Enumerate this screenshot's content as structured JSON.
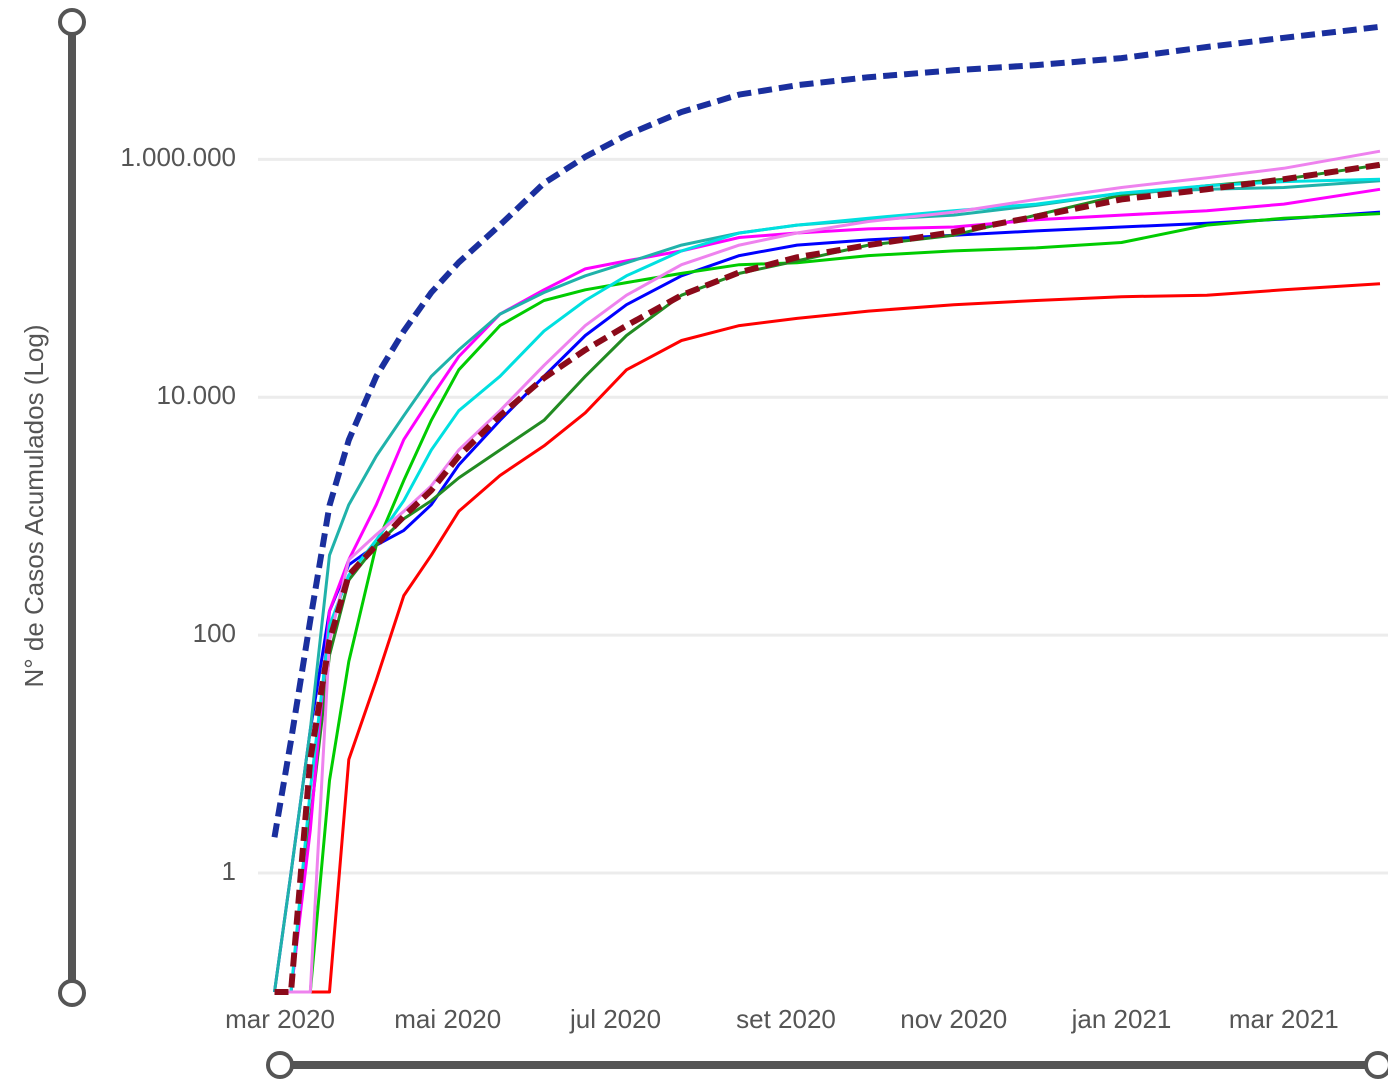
{
  "chart_data": {
    "type": "line",
    "y_label": "N° de Casos Acumulados (Log)",
    "log_y": true,
    "grid": true,
    "xlim": [
      "2020-02-28",
      "2021-04-05"
    ],
    "ylim": [
      0.1,
      18000000
    ],
    "xticks": [
      {
        "value": "2020-03-01",
        "label": "mar 2020"
      },
      {
        "value": "2020-05-01",
        "label": "mai 2020"
      },
      {
        "value": "2020-07-01",
        "label": "jul 2020"
      },
      {
        "value": "2020-09-01",
        "label": "set 2020"
      },
      {
        "value": "2020-11-01",
        "label": "nov 2020"
      },
      {
        "value": "2021-01-01",
        "label": "jan 2021"
      },
      {
        "value": "2021-03-01",
        "label": "mar 2021"
      }
    ],
    "yticks": [
      1,
      100,
      {
        "value": 10000,
        "label": "10.000"
      },
      {
        "value": 1000000,
        "label": "1.000.000"
      }
    ],
    "x": [
      "2020-02-28",
      "2020-03-05",
      "2020-03-12",
      "2020-03-19",
      "2020-03-26",
      "2020-04-05",
      "2020-04-15",
      "2020-04-25",
      "2020-05-05",
      "2020-05-20",
      "2020-06-05",
      "2020-06-20",
      "2020-07-05",
      "2020-07-25",
      "2020-08-15",
      "2020-09-05",
      "2020-10-01",
      "2020-11-01",
      "2020-12-01",
      "2021-01-01",
      "2021-02-01",
      "2021-03-01",
      "2021-04-05"
    ],
    "series": [
      {
        "color": "#ff0000",
        "values": [
          0.1,
          0.1,
          0.1,
          0.1,
          9,
          42,
          215,
          470,
          1100,
          2200,
          3900,
          7400,
          17000,
          30000,
          40000,
          46000,
          53000,
          60000,
          65000,
          70000,
          72000,
          80000,
          90000
        ]
      },
      {
        "color": "#0000ff",
        "values": [
          0.1,
          1,
          16,
          160,
          390,
          570,
          760,
          1250,
          2700,
          6400,
          15000,
          33000,
          60000,
          105000,
          155000,
          190000,
          210000,
          230000,
          250000,
          270000,
          290000,
          315000,
          360000
        ]
      },
      {
        "color": "#00cc00",
        "values": [
          0.1,
          0.1,
          0.1,
          6,
          60,
          570,
          2000,
          6400,
          17000,
          40000,
          65000,
          80000,
          92000,
          110000,
          130000,
          135000,
          155000,
          170000,
          180000,
          200000,
          280000,
          320000,
          350000
        ]
      },
      {
        "color": "#228b22",
        "values": [
          0.1,
          0.1,
          2.8,
          68,
          290,
          570,
          950,
          1350,
          2100,
          3600,
          6400,
          15000,
          33000,
          72000,
          110000,
          140000,
          190000,
          230000,
          340000,
          500000,
          600000,
          680000,
          900000
        ]
      },
      {
        "color": "#ff00ff",
        "values": [
          0.1,
          0.1,
          2.3,
          160,
          430,
          1250,
          4400,
          10000,
          22000,
          50000,
          80000,
          120000,
          140000,
          170000,
          220000,
          240000,
          260000,
          270000,
          310000,
          340000,
          370000,
          420000,
          560000
        ]
      },
      {
        "color": "#20b2aa",
        "values": [
          0.1,
          1,
          16,
          470,
          1250,
          3200,
          7000,
          15000,
          25000,
          50000,
          76000,
          105000,
          135000,
          190000,
          240000,
          280000,
          310000,
          340000,
          410000,
          520000,
          560000,
          580000,
          660000
        ]
      },
      {
        "color": "#00e0e0",
        "values": [
          0.1,
          0.1,
          5,
          120,
          320,
          630,
          1350,
          3600,
          7700,
          15000,
          36000,
          65000,
          105000,
          170000,
          240000,
          280000,
          320000,
          370000,
          420000,
          520000,
          600000,
          650000,
          680000
        ]
      },
      {
        "color": "#ee82ee",
        "values": [
          0.1,
          0.1,
          0.1,
          90,
          430,
          700,
          1100,
          1800,
          3600,
          7700,
          18500,
          40000,
          72000,
          130000,
          190000,
          240000,
          300000,
          360000,
          460000,
          580000,
          700000,
          840000,
          1170000
        ]
      },
      {
        "color": "#8b0a1a",
        "dashed": true,
        "values": [
          0.1,
          0.1,
          9,
          90,
          320,
          570,
          1000,
          1650,
          3200,
          7000,
          14500,
          25000,
          40000,
          72000,
          112000,
          150000,
          190000,
          245000,
          330000,
          460000,
          560000,
          680000,
          900000
        ]
      },
      {
        "color": "#1a2f9e",
        "dashed": true,
        "values": [
          2,
          13,
          134,
          1230,
          4370,
          15000,
          36000,
          76000,
          136000,
          280000,
          630000,
          1050000,
          1600000,
          2500000,
          3500000,
          4200000,
          4900000,
          5600000,
          6200000,
          7100000,
          8800000,
          10500000,
          13000000
        ]
      }
    ]
  }
}
